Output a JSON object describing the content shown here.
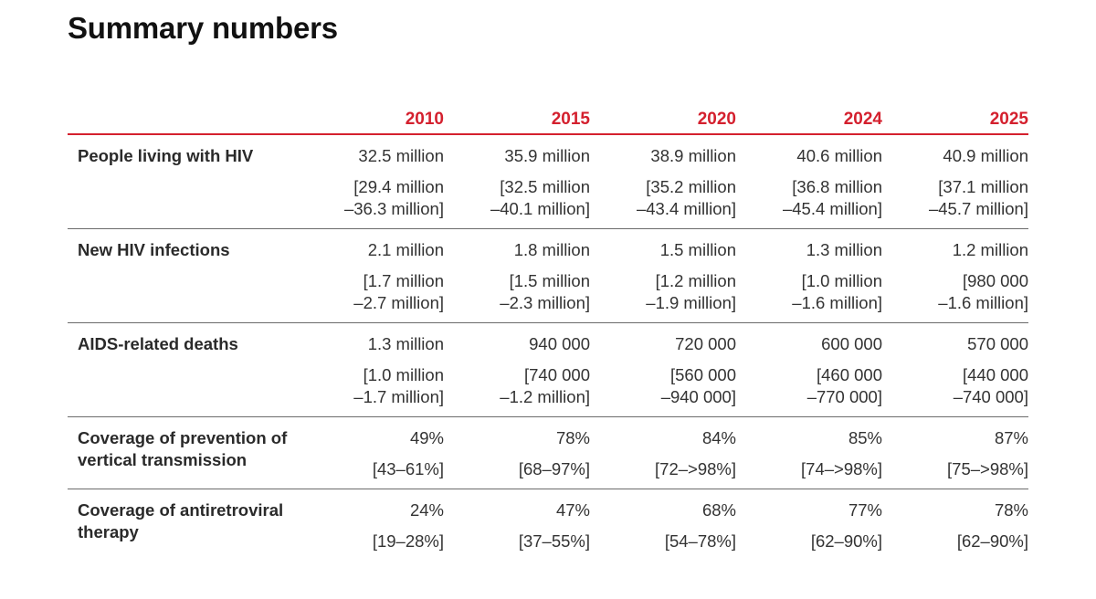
{
  "title": "Summary numbers",
  "years": [
    "2010",
    "2015",
    "2020",
    "2024",
    "2025"
  ],
  "rows": [
    {
      "label": "People living with HIV",
      "cells": [
        {
          "value": "32.5 million",
          "range": "[29.4 million\n–36.3 million]"
        },
        {
          "value": "35.9 million",
          "range": "[32.5 million\n–40.1 million]"
        },
        {
          "value": "38.9 million",
          "range": "[35.2 million\n–43.4 million]"
        },
        {
          "value": "40.6 million",
          "range": "[36.8 million\n–45.4 million]"
        },
        {
          "value": "40.9 million",
          "range": "[37.1 million\n–45.7 million]"
        }
      ]
    },
    {
      "label": "New HIV infections",
      "cells": [
        {
          "value": "2.1 million",
          "range": "[1.7 million\n–2.7 million]"
        },
        {
          "value": "1.8 million",
          "range": "[1.5 million\n–2.3 million]"
        },
        {
          "value": "1.5 million",
          "range": "[1.2 million\n–1.9 million]"
        },
        {
          "value": "1.3 million",
          "range": "[1.0 million\n–1.6 million]"
        },
        {
          "value": "1.2 million",
          "range": "[980 000\n–1.6 million]"
        }
      ]
    },
    {
      "label": "AIDS-related deaths",
      "cells": [
        {
          "value": "1.3 million",
          "range": "[1.0 million\n–1.7 million]"
        },
        {
          "value": "940 000",
          "range": "[740 000\n–1.2 million]"
        },
        {
          "value": "720 000",
          "range": "[560 000\n–940 000]"
        },
        {
          "value": "600 000",
          "range": "[460 000\n–770 000]"
        },
        {
          "value": "570 000",
          "range": "[440 000\n–740 000]"
        }
      ]
    },
    {
      "label": "Coverage of prevention of vertical transmission",
      "cells": [
        {
          "value": "49%",
          "range": "[43–61%]"
        },
        {
          "value": "78%",
          "range": "[68–97%]"
        },
        {
          "value": "84%",
          "range": "[72–>98%]"
        },
        {
          "value": "85%",
          "range": "[74–>98%]"
        },
        {
          "value": "87%",
          "range": "[75–>98%]"
        }
      ]
    },
    {
      "label": "Coverage of antiretroviral therapy",
      "cells": [
        {
          "value": "24%",
          "range": "[19–28%]"
        },
        {
          "value": "47%",
          "range": "[37–55%]"
        },
        {
          "value": "68%",
          "range": "[54–78%]"
        },
        {
          "value": "77%",
          "range": "[62–90%]"
        },
        {
          "value": "78%",
          "range": "[62–90%]"
        }
      ]
    }
  ],
  "colors": {
    "accent": "#d4202e",
    "divider": "#6b6b6b",
    "text": "#2a2a2a"
  }
}
